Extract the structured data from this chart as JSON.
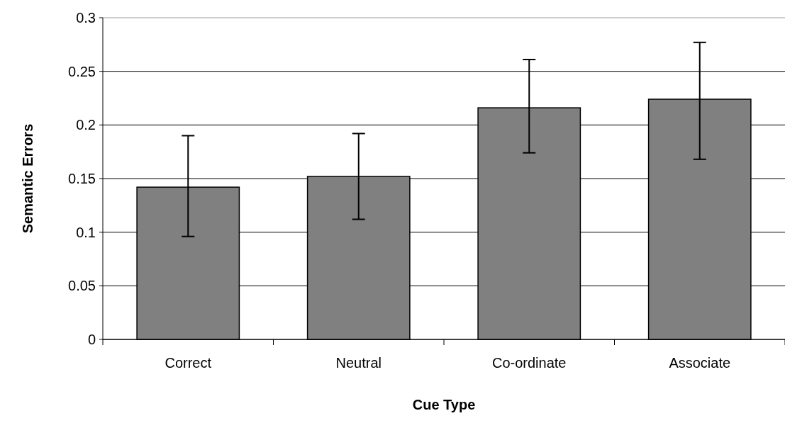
{
  "chart_data": {
    "type": "bar",
    "xlabel": "Cue Type",
    "ylabel": "Semantic Errors",
    "categories": [
      "Correct",
      "Neutral",
      "Co-ordinate",
      "Associate"
    ],
    "values": [
      0.142,
      0.152,
      0.216,
      0.224
    ],
    "color": "#808080",
    "errors": [
      [
        0.096,
        0.19
      ],
      [
        0.112,
        0.192
      ],
      [
        0.174,
        0.261
      ],
      [
        0.168,
        0.277
      ]
    ],
    "ylim": [
      0,
      0.3
    ],
    "yticks": [
      0,
      0.05,
      0.1,
      0.15,
      0.2,
      0.25,
      0.3
    ],
    "grid": "y"
  }
}
